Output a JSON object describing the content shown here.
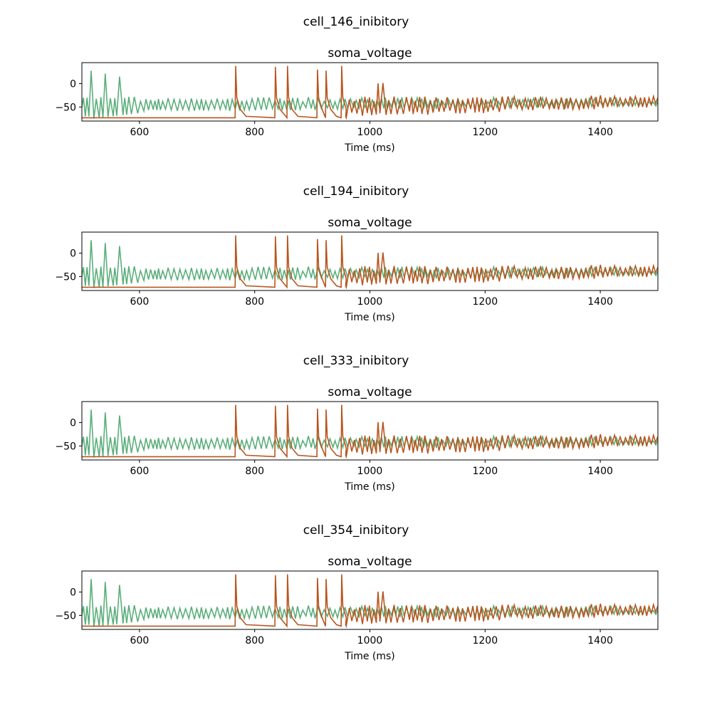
{
  "figure": {
    "background": "#ffffff"
  },
  "colors": {
    "green": "#5aae7a",
    "orange": "#b8561f"
  },
  "chart_data": [
    {
      "type": "line",
      "suptitle": "cell_146_inibitory",
      "title": "soma_voltage",
      "xlabel": "Time (ms)",
      "ylabel": "",
      "xlim": [
        500,
        1500
      ],
      "ylim": [
        -80,
        45
      ],
      "xticks": [
        600,
        800,
        1000,
        1200,
        1400
      ],
      "yticks": [
        0,
        -50
      ],
      "grid": false,
      "series": [
        {
          "color": "#5aae7a",
          "x": [
            500,
            1500
          ],
          "y_range": [
            -75,
            30
          ]
        },
        {
          "color": "#b8561f",
          "x": [
            500,
            1500
          ],
          "y_range": [
            -73,
            38
          ]
        }
      ]
    },
    {
      "type": "line",
      "suptitle": "cell_194_inibitory",
      "title": "soma_voltage",
      "xlabel": "Time (ms)",
      "ylabel": "",
      "xlim": [
        500,
        1500
      ],
      "ylim": [
        -80,
        45
      ],
      "xticks": [
        600,
        800,
        1000,
        1200,
        1400
      ],
      "yticks": [
        0,
        -50
      ],
      "grid": false,
      "series": [
        {
          "color": "#5aae7a",
          "x": [
            500,
            1500
          ],
          "y_range": [
            -75,
            30
          ]
        },
        {
          "color": "#b8561f",
          "x": [
            500,
            1500
          ],
          "y_range": [
            -73,
            38
          ]
        }
      ]
    },
    {
      "type": "line",
      "suptitle": "cell_333_inibitory",
      "title": "soma_voltage",
      "xlabel": "Time (ms)",
      "ylabel": "",
      "xlim": [
        500,
        1500
      ],
      "ylim": [
        -80,
        45
      ],
      "xticks": [
        600,
        800,
        1000,
        1200,
        1400
      ],
      "yticks": [
        0,
        -50
      ],
      "grid": false,
      "series": [
        {
          "color": "#5aae7a",
          "x": [
            500,
            1500
          ],
          "y_range": [
            -75,
            30
          ]
        },
        {
          "color": "#b8561f",
          "x": [
            500,
            1500
          ],
          "y_range": [
            -73,
            38
          ]
        }
      ]
    },
    {
      "type": "line",
      "suptitle": "cell_354_inibitory",
      "title": "soma_voltage",
      "xlabel": "Time (ms)",
      "ylabel": "",
      "xlim": [
        500,
        1500
      ],
      "ylim": [
        -80,
        45
      ],
      "xticks": [
        600,
        800,
        1000,
        1200,
        1400
      ],
      "yticks": [
        0,
        -50
      ],
      "grid": false,
      "series": [
        {
          "color": "#5aae7a",
          "x": [
            500,
            1500
          ],
          "y_range": [
            -75,
            30
          ]
        },
        {
          "color": "#b8561f",
          "x": [
            500,
            1500
          ],
          "y_range": [
            -73,
            38
          ]
        }
      ]
    }
  ]
}
